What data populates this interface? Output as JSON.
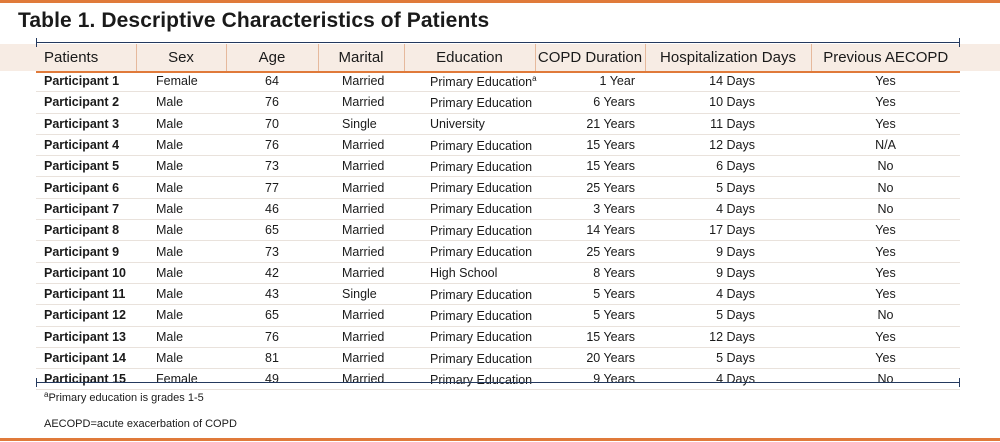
{
  "title": "Table 1. Descriptive Characteristics of Patients",
  "columns": [
    "Patients",
    "Sex",
    "Age",
    "Marital",
    "Education",
    "COPD Duration",
    "Hospitalization Days",
    "Previous AECOPD"
  ],
  "rows": [
    {
      "participant": "Participant  1",
      "sex": "Female",
      "age": "64",
      "marital": "Married",
      "education": "Primary Education",
      "education_sup": "a",
      "duration": "1 Year",
      "hospitalization": "14 Days",
      "previous": "Yes"
    },
    {
      "participant": "Participant 2",
      "sex": "Male",
      "age": "76",
      "marital": "Married",
      "education": "Primary Education",
      "education_sup": "",
      "duration": "6 Years",
      "hospitalization": "10 Days",
      "previous": "Yes"
    },
    {
      "participant": "Participant 3",
      "sex": "Male",
      "age": "70",
      "marital": "Single",
      "education": "University",
      "education_sup": "",
      "duration": "21 Years",
      "hospitalization": "11 Days",
      "previous": "Yes"
    },
    {
      "participant": "Participant 4",
      "sex": "Male",
      "age": "76",
      "marital": "Married",
      "education": "Primary Education",
      "education_sup": "",
      "duration": "15 Years",
      "hospitalization": "12 Days",
      "previous": "N/A"
    },
    {
      "participant": "Participant 5",
      "sex": "Male",
      "age": "73",
      "marital": "Married",
      "education": "Primary Education",
      "education_sup": "",
      "duration": "15 Years",
      "hospitalization": "6 Days",
      "previous": "No"
    },
    {
      "participant": "Participant 6",
      "sex": "Male",
      "age": "77",
      "marital": "Married",
      "education": "Primary Education",
      "education_sup": "",
      "duration": "25 Years",
      "hospitalization": "5 Days",
      "previous": "No"
    },
    {
      "participant": "Participant 7",
      "sex": "Male",
      "age": "46",
      "marital": "Married",
      "education": "Primary Education",
      "education_sup": "",
      "duration": "3 Years",
      "hospitalization": "4 Days",
      "previous": "No"
    },
    {
      "participant": "Participant 8",
      "sex": "Male",
      "age": "65",
      "marital": "Married",
      "education": "Primary Education",
      "education_sup": "",
      "duration": "14 Years",
      "hospitalization": "17 Days",
      "previous": "Yes"
    },
    {
      "participant": "Participant 9",
      "sex": "Male",
      "age": "73",
      "marital": "Married",
      "education": "Primary Education",
      "education_sup": "",
      "duration": "25 Years",
      "hospitalization": "9 Days",
      "previous": "Yes"
    },
    {
      "participant": "Participant 10",
      "sex": "Male",
      "age": "42",
      "marital": "Married",
      "education": "High School",
      "education_sup": "",
      "duration": "8 Years",
      "hospitalization": "9 Days",
      "previous": "Yes"
    },
    {
      "participant": "Participant 11",
      "sex": "Male",
      "age": "43",
      "marital": "Single",
      "education": "Primary Education",
      "education_sup": "",
      "duration": "5 Years",
      "hospitalization": "4 Days",
      "previous": "Yes"
    },
    {
      "participant": "Participant 12",
      "sex": "Male",
      "age": "65",
      "marital": "Married",
      "education": "Primary Education",
      "education_sup": "",
      "duration": "5 Years",
      "hospitalization": "5 Days",
      "previous": "No"
    },
    {
      "participant": "Participant 13",
      "sex": "Male",
      "age": "76",
      "marital": "Married",
      "education": "Primary Education",
      "education_sup": "",
      "duration": "15 Years",
      "hospitalization": "12 Days",
      "previous": "Yes"
    },
    {
      "participant": "Participant 14",
      "sex": "Male",
      "age": "81",
      "marital": "Married",
      "education": "Primary Education",
      "education_sup": "",
      "duration": "20 Years",
      "hospitalization": "5 Days",
      "previous": "Yes"
    },
    {
      "participant": "Participant 15",
      "sex": "Female",
      "age": "49",
      "marital": "Married",
      "education": "Primary Education",
      "education_sup": "",
      "duration": "9 Years",
      "hospitalization": "4 Days",
      "previous": "No"
    }
  ],
  "footnotes": {
    "mark": "a",
    "education_note": "Primary education is grades 1-5",
    "abbreviation_note": "AECOPD=acute exacerbation of COPD"
  },
  "colors": {
    "accent_orange": "#e07a3a",
    "navy_rule": "#24395e",
    "header_band": "#f7ece4"
  }
}
